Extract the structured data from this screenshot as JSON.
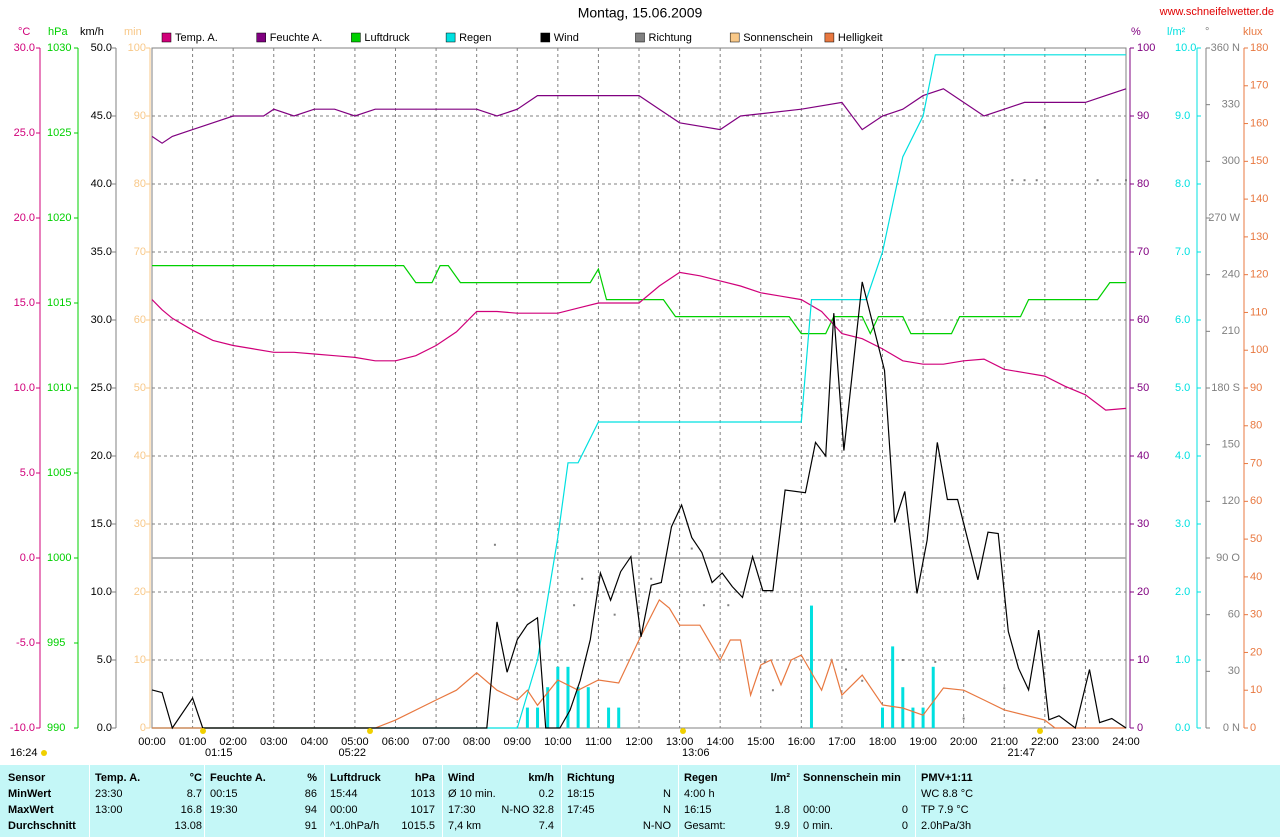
{
  "chart_data": {
    "type": "line",
    "title": "Montag, 15.06.2009",
    "source": "www.schneifelwetter.de",
    "xlim": [
      0,
      24
    ],
    "xticks": [
      {
        "value": 0,
        "label": "00:00"
      },
      {
        "value": 1,
        "label": "01:00"
      },
      {
        "value": 2,
        "label": "02:00"
      },
      {
        "value": 3,
        "label": "03:00"
      },
      {
        "value": 4,
        "label": "04:00"
      },
      {
        "value": 5,
        "label": "05:00"
      },
      {
        "value": 6,
        "label": "06:00"
      },
      {
        "value": 7,
        "label": "07:00"
      },
      {
        "value": 8,
        "label": "08:00"
      },
      {
        "value": 9,
        "label": "09:00"
      },
      {
        "value": 10,
        "label": "10:00"
      },
      {
        "value": 11,
        "label": "11:00"
      },
      {
        "value": 12,
        "label": "12:00"
      },
      {
        "value": 13,
        "label": "13:00"
      },
      {
        "value": 14,
        "label": "14:00"
      },
      {
        "value": 15,
        "label": "15:00"
      },
      {
        "value": 16,
        "label": "16:00"
      },
      {
        "value": 17,
        "label": "17:00"
      },
      {
        "value": 18,
        "label": "18:00"
      },
      {
        "value": 19,
        "label": "19:00"
      },
      {
        "value": 20,
        "label": "20:00"
      },
      {
        "value": 21,
        "label": "21:00"
      },
      {
        "value": 22,
        "label": "22:00"
      },
      {
        "value": 23,
        "label": "23:00"
      },
      {
        "value": 24,
        "label": "24:00"
      }
    ],
    "grid": true,
    "markers": [
      "01:15",
      "05:22",
      "13:06",
      "21:47",
      "16:24"
    ],
    "series": [
      {
        "name": "Temp. A.",
        "type": "line",
        "color": "#d0007a",
        "unit": "°C",
        "ylim": [
          -10,
          30
        ],
        "yticks": [
          {
            "value": -10,
            "label": "-10.0"
          },
          {
            "value": -5,
            "label": "-5.0"
          },
          {
            "value": 0,
            "label": "0.0"
          },
          {
            "value": 5,
            "label": "5.0"
          },
          {
            "value": 10,
            "label": "10.0"
          },
          {
            "value": 15,
            "label": "15.0"
          },
          {
            "value": 20,
            "label": "20.0"
          },
          {
            "value": 25,
            "label": "25.0"
          },
          {
            "value": 30,
            "label": "30.0"
          }
        ],
        "x": [
          0,
          0.25,
          0.5,
          1,
          1.5,
          2,
          2.5,
          3,
          3.5,
          4,
          4.5,
          5,
          5.5,
          6,
          6.5,
          7,
          7.5,
          8,
          8.5,
          9,
          9.5,
          10,
          10.5,
          11,
          11.5,
          12,
          12.5,
          13,
          13.5,
          14,
          14.5,
          15,
          15.5,
          16,
          16.5,
          17,
          17.5,
          18,
          18.5,
          19,
          19.5,
          20,
          20.5,
          21,
          21.5,
          22,
          22.5,
          23,
          23.5,
          24
        ],
        "values": [
          15.2,
          14.6,
          14.1,
          13.4,
          12.8,
          12.5,
          12.3,
          12.1,
          12.1,
          12.0,
          11.9,
          11.8,
          11.6,
          11.6,
          11.9,
          12.5,
          13.3,
          14.5,
          14.5,
          14.4,
          14.4,
          14.4,
          14.7,
          15.0,
          15.0,
          15.0,
          16.0,
          16.8,
          16.6,
          16.3,
          16.0,
          15.6,
          15.4,
          15.2,
          14.5,
          13.2,
          12.9,
          12.3,
          11.6,
          11.4,
          11.4,
          11.6,
          11.7,
          11.1,
          10.9,
          10.7,
          10.1,
          9.6,
          8.7,
          8.8
        ]
      },
      {
        "name": "Feuchte A.",
        "type": "line",
        "color": "#800080",
        "unit": "%",
        "ylim": [
          0,
          100
        ],
        "yticks": [
          0,
          10,
          20,
          30,
          40,
          50,
          60,
          70,
          80,
          90,
          100
        ],
        "x": [
          0,
          0.25,
          0.5,
          1,
          1.5,
          2,
          2.75,
          3,
          3.5,
          4,
          4.5,
          5,
          5.5,
          8,
          8.5,
          9,
          9.5,
          12,
          12.5,
          13,
          14,
          14.5,
          16,
          17,
          17.5,
          18,
          18.5,
          19,
          19.5,
          20,
          20.5,
          21,
          21.5,
          23,
          23.5,
          24
        ],
        "values": [
          87,
          86,
          87,
          88,
          89,
          90,
          90,
          91,
          90,
          91,
          91,
          90,
          91,
          91,
          90,
          91,
          93,
          93,
          91,
          89,
          88,
          90,
          91,
          92,
          88,
          90,
          91,
          93,
          94,
          92,
          90,
          91,
          92,
          92,
          93,
          94
        ]
      },
      {
        "name": "Luftdruck",
        "type": "line",
        "color": "#00d000",
        "unit": "hPa",
        "ylim": [
          990,
          1030
        ],
        "yticks": [
          990,
          995,
          1000,
          1005,
          1010,
          1015,
          1020,
          1025,
          1030
        ],
        "x": [
          0,
          6.2,
          6.5,
          6.9,
          7.1,
          7.3,
          7.6,
          10.8,
          11.0,
          11.2,
          12.6,
          12.9,
          15.7,
          16.0,
          16.6,
          16.8,
          17.5,
          17.7,
          17.9,
          18.5,
          18.7,
          19.7,
          19.9,
          21.4,
          21.6,
          23.3,
          23.6,
          24
        ],
        "values": [
          1017.2,
          1017.2,
          1016.2,
          1016.2,
          1017.2,
          1017.2,
          1016.2,
          1016.2,
          1017.0,
          1015.2,
          1015.2,
          1014.2,
          1014.2,
          1013.2,
          1013.2,
          1014.2,
          1014.2,
          1013.2,
          1014.2,
          1014.2,
          1013.2,
          1013.2,
          1014.2,
          1014.2,
          1015.2,
          1015.2,
          1016.2,
          1016.2
        ]
      },
      {
        "name": "Regen",
        "type": "line",
        "color": "#00e0e0",
        "unit": "l/m²",
        "ylim": [
          0,
          10
        ],
        "yticks": [
          {
            "value": 0,
            "label": "0.0"
          },
          {
            "value": 1,
            "label": "1.0"
          },
          {
            "value": 2,
            "label": "2.0"
          },
          {
            "value": 3,
            "label": "3.0"
          },
          {
            "value": 4,
            "label": "4.0"
          },
          {
            "value": 5,
            "label": "5.0"
          },
          {
            "value": 6,
            "label": "6.0"
          },
          {
            "value": 7,
            "label": "7.0"
          },
          {
            "value": 8,
            "label": "8.0"
          },
          {
            "value": 9,
            "label": "9.0"
          },
          {
            "value": 10,
            "label": "10.0"
          }
        ],
        "x": [
          0,
          9,
          9.5,
          10,
          10.25,
          10.5,
          11,
          16,
          16.25,
          17.6,
          18,
          18.5,
          19,
          19.3,
          24
        ],
        "values": [
          0,
          0,
          1.0,
          2.8,
          3.9,
          3.9,
          4.5,
          4.5,
          6.3,
          6.3,
          7.0,
          8.4,
          9.0,
          9.9,
          9.9
        ],
        "bar_x": [
          9.25,
          9.5,
          9.75,
          10,
          10.25,
          10.5,
          10.75,
          11.25,
          11.5,
          16.25,
          18,
          18.25,
          18.5,
          18.75,
          19,
          19.25
        ],
        "bar_values": [
          0.3,
          0.3,
          0.6,
          0.9,
          0.9,
          0.6,
          0.6,
          0.3,
          0.3,
          1.8,
          0.3,
          1.2,
          0.6,
          0.3,
          0.3,
          0.9
        ]
      },
      {
        "name": "Wind",
        "type": "line",
        "color": "#000000",
        "unit": "km/h",
        "ylim": [
          0,
          50
        ],
        "yticks": [
          {
            "value": 0,
            "label": "0.0"
          },
          {
            "value": 5,
            "label": "5.0"
          },
          {
            "value": 10,
            "label": "10.0"
          },
          {
            "value": 15,
            "label": "15.0"
          },
          {
            "value": 20,
            "label": "20.0"
          },
          {
            "value": 25,
            "label": "25.0"
          },
          {
            "value": 30,
            "label": "30.0"
          },
          {
            "value": 35,
            "label": "35.0"
          },
          {
            "value": 40,
            "label": "40.0"
          },
          {
            "value": 45,
            "label": "45.0"
          },
          {
            "value": 50,
            "label": "50.0"
          }
        ],
        "x": [
          0,
          0.25,
          0.5,
          1,
          1.25,
          8.25,
          8.5,
          8.75,
          9,
          9.25,
          9.5,
          9.7,
          10.05,
          10.3,
          10.55,
          10.8,
          11.05,
          11.3,
          11.55,
          11.8,
          12.05,
          12.3,
          12.55,
          12.8,
          13.05,
          13.3,
          13.55,
          13.8,
          14.05,
          14.3,
          14.55,
          14.8,
          15.05,
          15.3,
          15.6,
          16.1,
          16.35,
          16.6,
          16.8,
          17.05,
          17.5,
          18.05,
          18.3,
          18.55,
          18.85,
          19.1,
          19.35,
          19.6,
          19.85,
          20.35,
          20.6,
          20.85,
          21.1,
          21.35,
          21.6,
          21.85,
          22.1,
          22.35,
          22.75,
          23.1,
          23.35,
          23.65,
          24
        ],
        "values": [
          2.8,
          2.6,
          0,
          2.2,
          0,
          0,
          7.8,
          4.1,
          6.5,
          7.6,
          8.1,
          0,
          0,
          1.3,
          3.5,
          6.5,
          11.4,
          9.4,
          11.5,
          12.6,
          6.7,
          10.5,
          10.7,
          14.8,
          16.4,
          14.0,
          12.9,
          10.7,
          11.4,
          10.4,
          9.6,
          12.6,
          10.1,
          10.1,
          17.5,
          17.3,
          21.0,
          20.0,
          30.5,
          20.4,
          32.8,
          26.3,
          15.1,
          17.4,
          9.9,
          13.8,
          21.0,
          16.8,
          16.8,
          10.9,
          14.4,
          14.3,
          7.1,
          4.4,
          2.8,
          7.2,
          0.6,
          0.9,
          0,
          4.3,
          0.4,
          0.7,
          0
        ]
      },
      {
        "name": "Richtung",
        "type": "scatter",
        "color": "#808080",
        "unit": "°",
        "ylim": [
          0,
          360
        ],
        "ref_line": 90,
        "yticks": [
          {
            "value": 0,
            "label": "0 N"
          },
          30,
          60,
          {
            "value": 90,
            "label": "90 O"
          },
          120,
          150,
          {
            "value": 180,
            "label": "180 S"
          },
          210,
          240,
          {
            "value": 270,
            "label": "270 W"
          },
          300,
          330,
          {
            "value": 360,
            "label": "360 N"
          }
        ],
        "x": [
          8.45,
          9.0,
          10.4,
          10.6,
          11.0,
          11.4,
          12.3,
          13.3,
          13.6,
          14.2,
          15.1,
          15.3,
          17.1,
          17.5,
          18.5,
          19.3,
          20.0,
          21.0,
          21.2,
          21.5,
          21.8,
          22.0,
          23.3,
          24
        ],
        "values": [
          97,
          73,
          65,
          79,
          77,
          60,
          79,
          95,
          65,
          65,
          35,
          20,
          31,
          25,
          36,
          35,
          5,
          21,
          290,
          290,
          290,
          318,
          290,
          290
        ]
      },
      {
        "name": "Sonnenschein",
        "type": "line",
        "color": "#f8c888",
        "unit": "min",
        "ylim": [
          0,
          100
        ],
        "yticks": [
          0,
          10,
          20,
          30,
          40,
          50,
          60,
          70,
          80,
          90,
          100
        ],
        "x": [],
        "values": []
      },
      {
        "name": "Helligkeit",
        "type": "line",
        "color": "#e87840",
        "unit": "klux",
        "ylim": [
          0,
          180
        ],
        "yticks": [
          0,
          10,
          20,
          30,
          40,
          50,
          60,
          70,
          80,
          90,
          100,
          110,
          120,
          130,
          140,
          150,
          160,
          170,
          180
        ],
        "x": [
          0,
          5.5,
          6,
          7,
          7.5,
          8,
          8.5,
          9,
          9.25,
          9.5,
          10,
          10.5,
          11,
          11.5,
          12,
          12.25,
          12.5,
          12.75,
          13,
          13.5,
          14,
          14.25,
          14.5,
          14.75,
          15,
          15.25,
          15.5,
          15.75,
          16,
          16.5,
          16.75,
          17,
          17.5,
          18,
          18.5,
          19,
          19.5,
          20,
          20.5,
          21,
          22,
          22.25,
          24
        ],
        "values": [
          0,
          0,
          2.1,
          7.4,
          10,
          14.6,
          10,
          7.4,
          10,
          6,
          12.7,
          10,
          12.7,
          11.9,
          23.3,
          28.6,
          33.9,
          31.7,
          27.2,
          27.2,
          18,
          23.3,
          23.3,
          8.7,
          16.7,
          18,
          11.4,
          18,
          19.3,
          10,
          18,
          8.7,
          14,
          6.1,
          5.3,
          3.4,
          10.6,
          10,
          7.4,
          4.8,
          2.1,
          0,
          0
        ]
      }
    ]
  },
  "table": {
    "corner": "Sensor",
    "columns": [
      {
        "name": "Temp. A.",
        "unit": "°C"
      },
      {
        "name": "Feuchte A.",
        "unit": "%"
      },
      {
        "name": "Luftdruck",
        "unit": "hPa"
      },
      {
        "name": "Wind",
        "unit": "km/h"
      },
      {
        "name": "Richtung"
      },
      {
        "name": "Regen",
        "unit": "l/m²"
      },
      {
        "name": "Sonnenschein min"
      },
      {
        "name": "PMV+1:11"
      }
    ],
    "rows": [
      {
        "label": "MinWert",
        "cells": [
          {
            "left": "23:30",
            "right": "8.7"
          },
          {
            "left": "00:15",
            "right": "86"
          },
          {
            "left": "15:44",
            "right": "1013"
          },
          {
            "left": "Ø 10 min.",
            "right": "0.2"
          },
          {
            "left": "18:15",
            "right": "N"
          },
          {
            "left": "4:00 h"
          },
          {},
          {
            "left": "WC 8.8 °C"
          }
        ]
      },
      {
        "label": "MaxWert",
        "cells": [
          {
            "left": "13:00",
            "right": "16.8"
          },
          {
            "left": "19:30",
            "right": "94"
          },
          {
            "left": "00:00",
            "right": "1017"
          },
          {
            "left": "17:30",
            "right": "N-NO 32.8"
          },
          {
            "left": "17:45",
            "right": "N"
          },
          {
            "left": "16:15",
            "right": "1.8"
          },
          {
            "left": "00:00",
            "right": "0"
          },
          {
            "left": "TP 7.9 °C"
          }
        ]
      },
      {
        "label": "Durchschnitt",
        "cells": [
          {
            "right": "13.08"
          },
          {
            "right": "91"
          },
          {
            "left": "^1.0hPa/h",
            "right": "1015.5"
          },
          {
            "left": "7,4 km",
            "right": "7.4"
          },
          {
            "right": "N-NO"
          },
          {
            "left": "Gesamt:",
            "right": "9.9"
          },
          {
            "left": "0 min.",
            "right": "0"
          },
          {
            "left": "2.0hPa/3h"
          }
        ]
      }
    ]
  }
}
